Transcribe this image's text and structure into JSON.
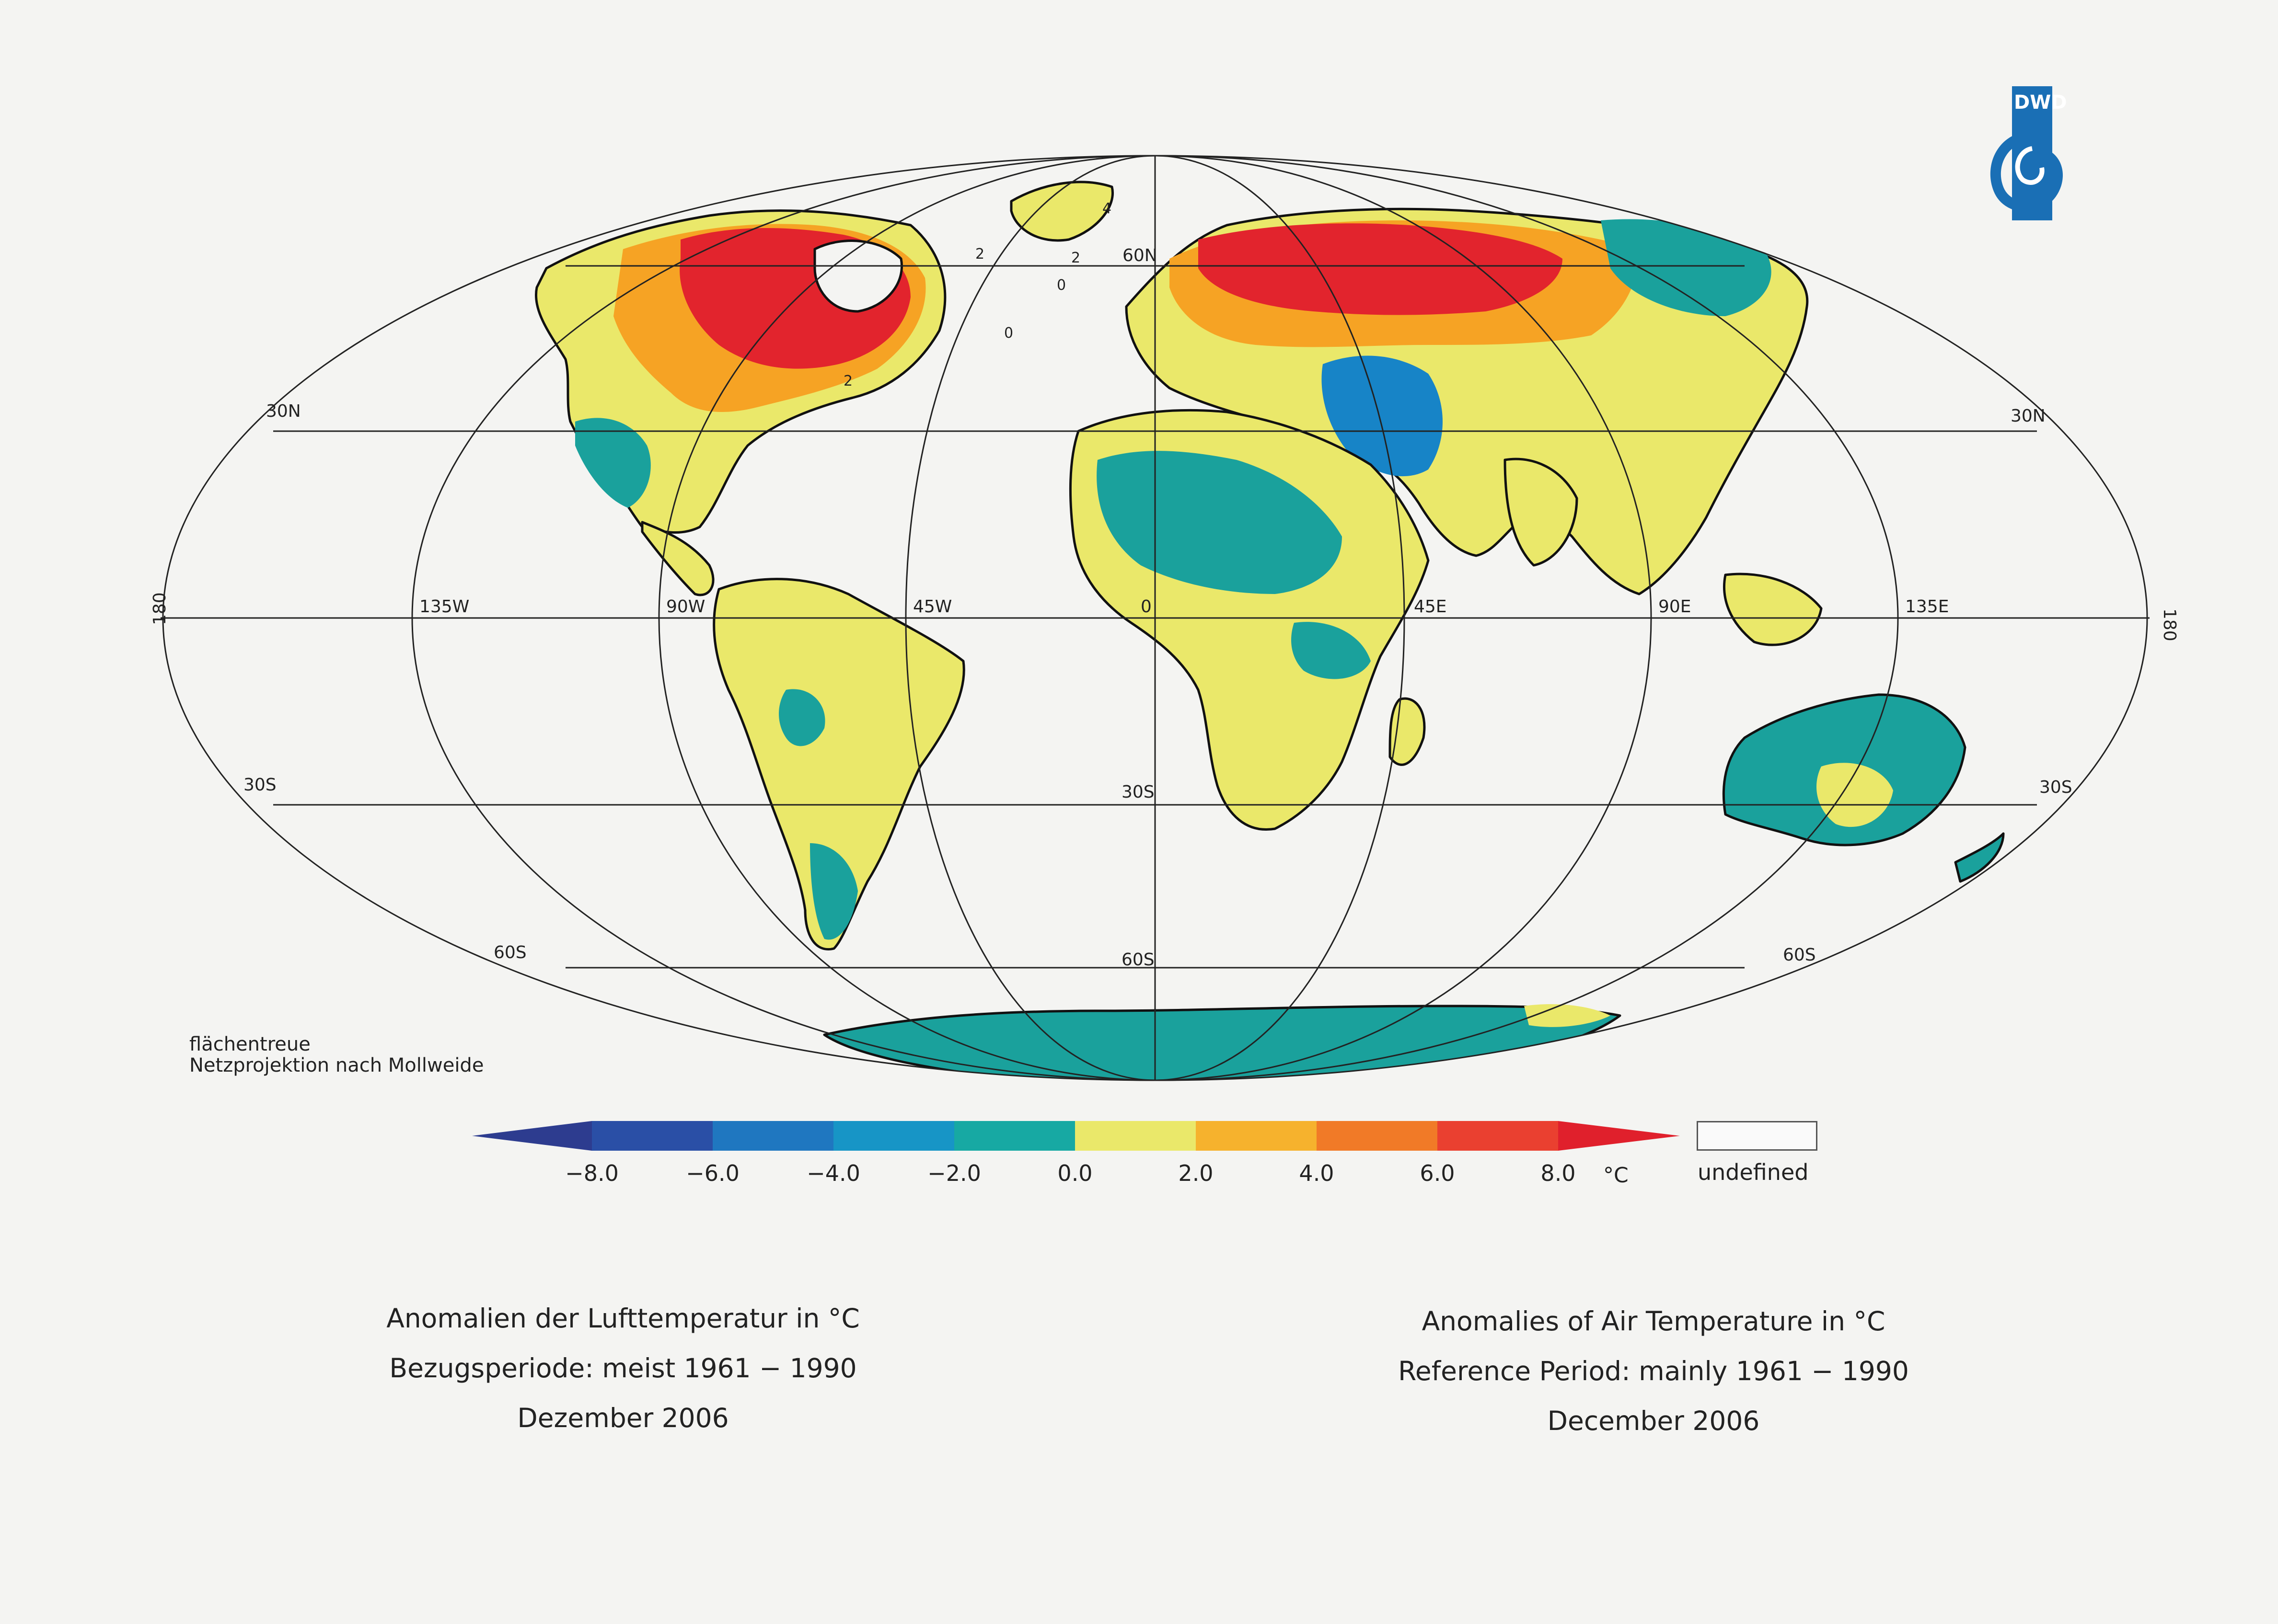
{
  "logo": {
    "text": "DWD",
    "color": "#1a6fb5"
  },
  "map": {
    "projection_note": [
      "flächentreue",
      "Netzprojektion nach Mollweide"
    ],
    "latitude_labels": {
      "n60": "60N",
      "n30": "30N",
      "s30": "30S",
      "s60": "60S"
    },
    "longitude_labels": {
      "w180": "180",
      "w135": "135W",
      "w90": "90W",
      "w45": "45W",
      "zero": "0",
      "e45": "45E",
      "e90": "90E",
      "e135": "135E",
      "e180": "180"
    },
    "contour_labels": [
      "4",
      "2",
      "2",
      "0",
      "0",
      "2"
    ],
    "colors": {
      "ocean": "#f4f4f2",
      "cool1": "#1aa19c",
      "cool2": "#1784c7",
      "cool3": "#1f5fb0",
      "neutral": "#eae86a",
      "warm1": "#f6a324",
      "warm2": "#f06228",
      "warm3": "#e2242d",
      "coast": "#111111"
    }
  },
  "legend": {
    "ticks": [
      "−8.0",
      "−6.0",
      "−4.0",
      "−2.0",
      "0.0",
      "2.0",
      "4.0",
      "6.0",
      "8.0"
    ],
    "unit": "°C",
    "undefined_label": "undefined",
    "bands": [
      "#2d3c8f",
      "#2a4fa6",
      "#1f77c0",
      "#1795c6",
      "#17a9a3",
      "#eae86a",
      "#f6b22d",
      "#f17a27",
      "#ea4030",
      "#e0202c"
    ]
  },
  "caption_de": {
    "line1": "Anomalien der Lufttemperatur in °C",
    "line2": "Bezugsperiode: meist 1961 − 1990",
    "line3": "Dezember 2006"
  },
  "caption_en": {
    "line1": "Anomalies of Air Temperature in °C",
    "line2": "Reference Period: mainly 1961 − 1990",
    "line3": "December 2006"
  }
}
